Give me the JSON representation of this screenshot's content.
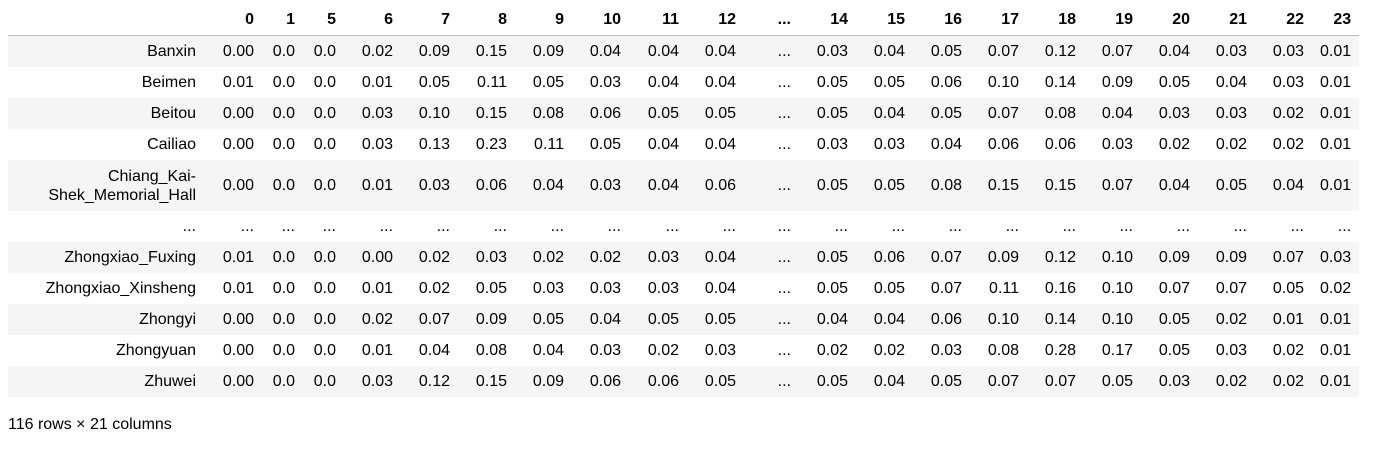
{
  "table": {
    "columns": [
      "0",
      "1",
      "5",
      "6",
      "7",
      "8",
      "9",
      "10",
      "11",
      "12",
      "...",
      "14",
      "15",
      "16",
      "17",
      "18",
      "19",
      "20",
      "21",
      "22",
      "23"
    ],
    "rows": [
      {
        "index": "Banxin",
        "values": [
          "0.00",
          "0.0",
          "0.0",
          "0.02",
          "0.09",
          "0.15",
          "0.09",
          "0.04",
          "0.04",
          "0.04",
          "...",
          "0.03",
          "0.04",
          "0.05",
          "0.07",
          "0.12",
          "0.07",
          "0.04",
          "0.03",
          "0.03",
          "0.01"
        ]
      },
      {
        "index": "Beimen",
        "values": [
          "0.01",
          "0.0",
          "0.0",
          "0.01",
          "0.05",
          "0.11",
          "0.05",
          "0.03",
          "0.04",
          "0.04",
          "...",
          "0.05",
          "0.05",
          "0.06",
          "0.10",
          "0.14",
          "0.09",
          "0.05",
          "0.04",
          "0.03",
          "0.01"
        ]
      },
      {
        "index": "Beitou",
        "values": [
          "0.00",
          "0.0",
          "0.0",
          "0.03",
          "0.10",
          "0.15",
          "0.08",
          "0.06",
          "0.05",
          "0.05",
          "...",
          "0.05",
          "0.04",
          "0.05",
          "0.07",
          "0.08",
          "0.04",
          "0.03",
          "0.03",
          "0.02",
          "0.01"
        ]
      },
      {
        "index": "Cailiao",
        "values": [
          "0.00",
          "0.0",
          "0.0",
          "0.03",
          "0.13",
          "0.23",
          "0.11",
          "0.05",
          "0.04",
          "0.04",
          "...",
          "0.03",
          "0.03",
          "0.04",
          "0.06",
          "0.06",
          "0.03",
          "0.02",
          "0.02",
          "0.02",
          "0.01"
        ]
      },
      {
        "index": "Chiang_Kai-Shek_Memorial_Hall",
        "index_lines": [
          "Chiang_Kai-",
          "Shek_Memorial_Hall"
        ],
        "values": [
          "0.00",
          "0.0",
          "0.0",
          "0.01",
          "0.03",
          "0.06",
          "0.04",
          "0.03",
          "0.04",
          "0.06",
          "...",
          "0.05",
          "0.05",
          "0.08",
          "0.15",
          "0.15",
          "0.07",
          "0.04",
          "0.05",
          "0.04",
          "0.01"
        ]
      },
      {
        "index": "...",
        "values": [
          "...",
          "...",
          "...",
          "...",
          "...",
          "...",
          "...",
          "...",
          "...",
          "...",
          "...",
          "...",
          "...",
          "...",
          "...",
          "...",
          "...",
          "...",
          "...",
          "...",
          "..."
        ]
      },
      {
        "index": "Zhongxiao_Fuxing",
        "values": [
          "0.01",
          "0.0",
          "0.0",
          "0.00",
          "0.02",
          "0.03",
          "0.02",
          "0.02",
          "0.03",
          "0.04",
          "...",
          "0.05",
          "0.06",
          "0.07",
          "0.09",
          "0.12",
          "0.10",
          "0.09",
          "0.09",
          "0.07",
          "0.03"
        ]
      },
      {
        "index": "Zhongxiao_Xinsheng",
        "values": [
          "0.01",
          "0.0",
          "0.0",
          "0.01",
          "0.02",
          "0.05",
          "0.03",
          "0.03",
          "0.03",
          "0.04",
          "...",
          "0.05",
          "0.05",
          "0.07",
          "0.11",
          "0.16",
          "0.10",
          "0.07",
          "0.07",
          "0.05",
          "0.02"
        ]
      },
      {
        "index": "Zhongyi",
        "values": [
          "0.00",
          "0.0",
          "0.0",
          "0.02",
          "0.07",
          "0.09",
          "0.05",
          "0.04",
          "0.05",
          "0.05",
          "...",
          "0.04",
          "0.04",
          "0.06",
          "0.10",
          "0.14",
          "0.10",
          "0.05",
          "0.02",
          "0.01",
          "0.01"
        ]
      },
      {
        "index": "Zhongyuan",
        "values": [
          "0.00",
          "0.0",
          "0.0",
          "0.01",
          "0.04",
          "0.08",
          "0.04",
          "0.03",
          "0.02",
          "0.03",
          "...",
          "0.02",
          "0.02",
          "0.03",
          "0.08",
          "0.28",
          "0.17",
          "0.05",
          "0.03",
          "0.02",
          "0.01"
        ]
      },
      {
        "index": "Zhuwei",
        "values": [
          "0.00",
          "0.0",
          "0.0",
          "0.03",
          "0.12",
          "0.15",
          "0.09",
          "0.06",
          "0.06",
          "0.05",
          "...",
          "0.05",
          "0.04",
          "0.05",
          "0.07",
          "0.07",
          "0.05",
          "0.03",
          "0.02",
          "0.02",
          "0.01"
        ]
      }
    ],
    "shape_text": "116 rows × 21 columns"
  }
}
